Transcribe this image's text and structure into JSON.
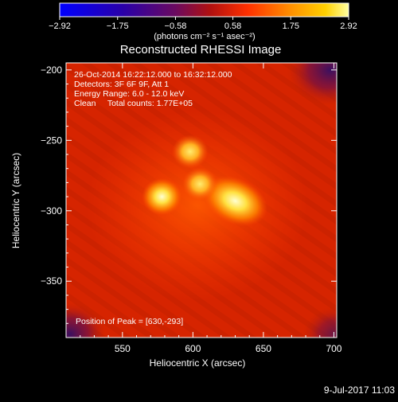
{
  "chart_data": {
    "type": "heatmap",
    "title": "Reconstructed RHESSI Image",
    "xlabel": "Heliocentric X (arcsec)",
    "ylabel": "Heliocentric Y (arcsec)",
    "xlim": [
      510,
      702
    ],
    "ylim": [
      -390,
      -195
    ],
    "xticks": [
      550,
      600,
      650,
      700
    ],
    "xtick_labels": [
      "550",
      "600",
      "650",
      "700"
    ],
    "yticks": [
      -200,
      -250,
      -300,
      -350
    ],
    "ytick_labels": [
      "−200",
      "−250",
      "−300",
      "−350"
    ],
    "colorbar": {
      "min": -2.92,
      "max": 2.92,
      "ticks": [
        -2.92,
        -1.75,
        -0.58,
        0.58,
        1.75,
        2.92
      ],
      "tick_labels": [
        "−2.92",
        "−1.75",
        "−0.58",
        "0.58",
        "1.75",
        "2.92"
      ],
      "unit_label": "(photons cm⁻² s⁻¹ asec⁻²)"
    },
    "sources": [
      {
        "x": 630,
        "y": -293,
        "value": 2.92
      },
      {
        "x": 578,
        "y": -290,
        "value": 2.4
      },
      {
        "x": 598,
        "y": -258,
        "value": 1.9
      },
      {
        "x": 605,
        "y": -281,
        "value": 1.8
      }
    ],
    "annotations": [
      "26-Oct-2014 16:22:12.000 to 16:32:12.000",
      "Detectors: 3F 6F 9F, Att 1",
      "Energy Range: 6.0 - 12.0 keV",
      "Clean     Total counts: 1.77E+05"
    ],
    "peak_label": "Position of Peak = [630,-293]",
    "plot_date": "9-Jul-2017 11:03"
  },
  "colors": {
    "background": "#000000",
    "map_base": "#d62400",
    "hot": "#ffff60",
    "cool_corner": "#3a1060"
  }
}
